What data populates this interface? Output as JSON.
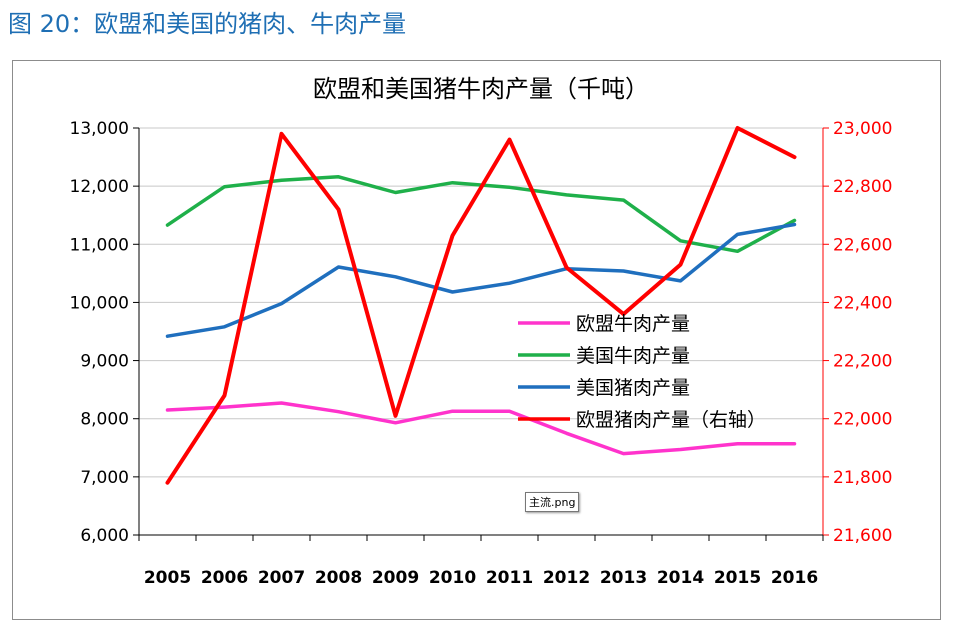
{
  "caption": "图 20：欧盟和美国的猪肉、牛肉产量",
  "tooltip": "主流.png",
  "chart_data": {
    "type": "line",
    "title": "欧盟和美国猪牛肉产量（千吨）",
    "categories": [
      "2005",
      "2006",
      "2007",
      "2008",
      "2009",
      "2010",
      "2011",
      "2012",
      "2013",
      "2014",
      "2015",
      "2016"
    ],
    "y_left": {
      "ylim": [
        6000,
        13000
      ],
      "ticks": [
        "6,000",
        "7,000",
        "8,000",
        "9,000",
        "10,000",
        "11,000",
        "12,000",
        "13,000"
      ],
      "tick_values": [
        6000,
        7000,
        8000,
        9000,
        10000,
        11000,
        12000,
        13000
      ],
      "color": "#000000"
    },
    "y_right": {
      "ylim": [
        21600,
        23000
      ],
      "ticks": [
        "21,600",
        "21,800",
        "22,000",
        "22,200",
        "22,400",
        "22,600",
        "22,800",
        "23,000"
      ],
      "tick_values": [
        21600,
        21800,
        22000,
        22200,
        22400,
        22600,
        22800,
        23000
      ],
      "color": "#ff0000"
    },
    "grid": true,
    "legend_position": "center-right",
    "series": [
      {
        "name": "欧盟牛肉产量",
        "axis": "left",
        "color": "#ff33cc",
        "values": [
          8150,
          8200,
          8270,
          8120,
          7930,
          8130,
          8130,
          7750,
          7400,
          7470,
          7570,
          7570
        ]
      },
      {
        "name": "美国牛肉产量",
        "axis": "left",
        "color": "#1fb04a",
        "values": [
          11330,
          11990,
          12100,
          12160,
          11890,
          12060,
          11980,
          11850,
          11760,
          11060,
          10880,
          11410
        ]
      },
      {
        "name": "美国猪肉产量",
        "axis": "left",
        "color": "#1f6fbe",
        "values": [
          9420,
          9580,
          9980,
          10610,
          10440,
          10180,
          10330,
          10580,
          10540,
          10370,
          11170,
          11340
        ]
      },
      {
        "name": "欧盟猪肉产量（右轴）",
        "axis": "right",
        "color": "#ff0000",
        "values": [
          21780,
          22080,
          22980,
          22720,
          22010,
          22630,
          22960,
          22520,
          22360,
          22530,
          23000,
          22900
        ]
      }
    ]
  }
}
